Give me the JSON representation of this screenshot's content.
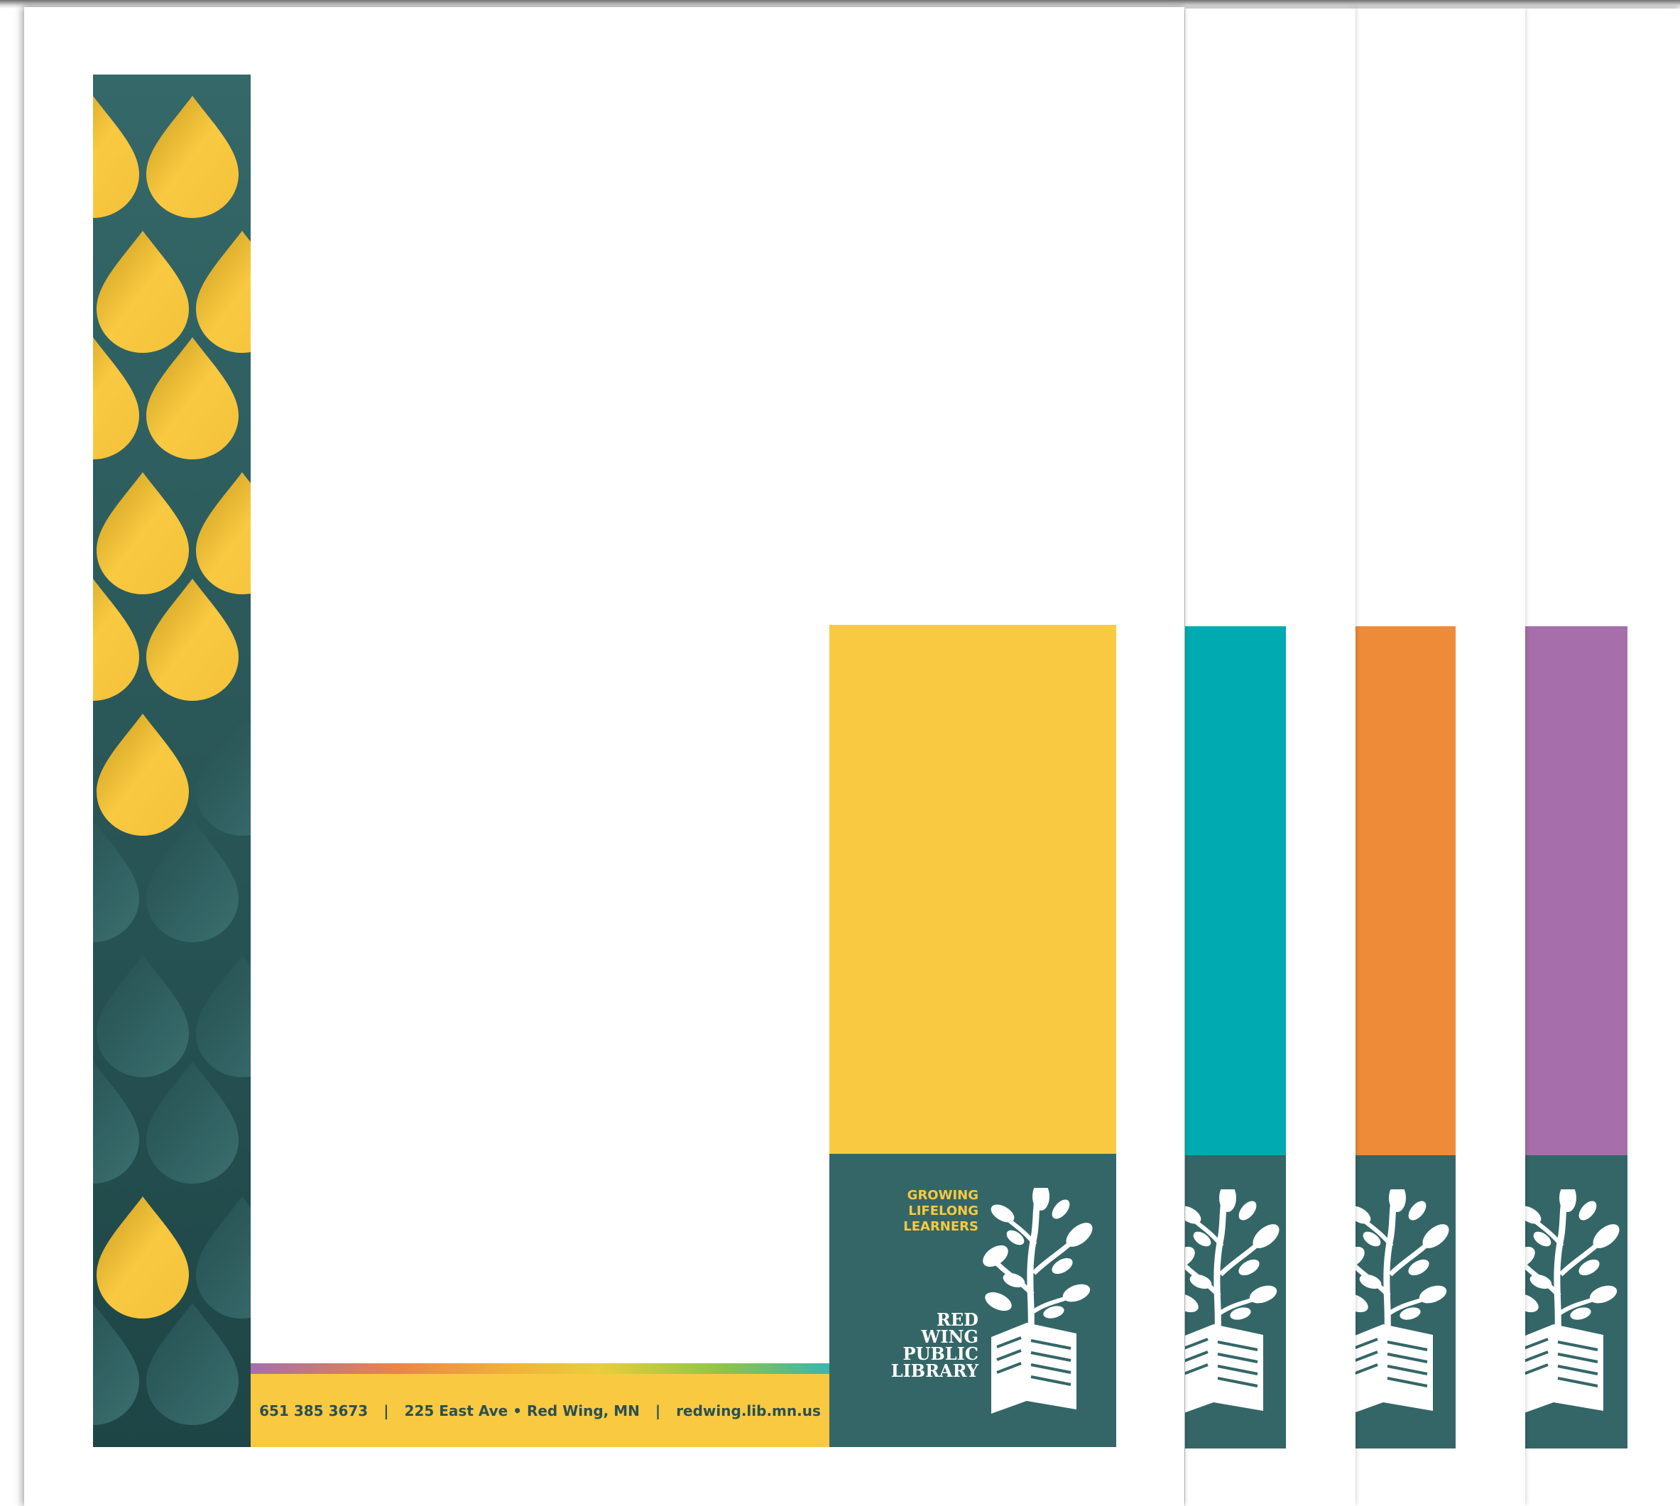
{
  "colors": {
    "teal_dark": "#346667",
    "yellow": "#f9c941",
    "turquoise": "#00aab1",
    "orange": "#ee8b39",
    "purple": "#a66fab"
  },
  "variants": [
    {
      "name": "yellow",
      "accent": "#f9c941"
    },
    {
      "name": "turquoise",
      "accent": "#00aab1"
    },
    {
      "name": "orange",
      "accent": "#ee8b39"
    },
    {
      "name": "purple",
      "accent": "#a66fab"
    }
  ],
  "logo": {
    "tagline": [
      "GROWING",
      "LIFELONG",
      "LEARNERS"
    ],
    "name": [
      "RED",
      "WING",
      "PUBLIC",
      "LIBRARY"
    ],
    "icon": "tree-growing-from-book-icon"
  },
  "footer": {
    "phone": "651 385 3673",
    "address": "225 East Ave",
    "bullet": "•",
    "city": "Red Wing, MN",
    "separator": "|",
    "website": "redwing.lib.mn.us"
  },
  "pattern": {
    "icon": "leaf-drop-pattern"
  }
}
